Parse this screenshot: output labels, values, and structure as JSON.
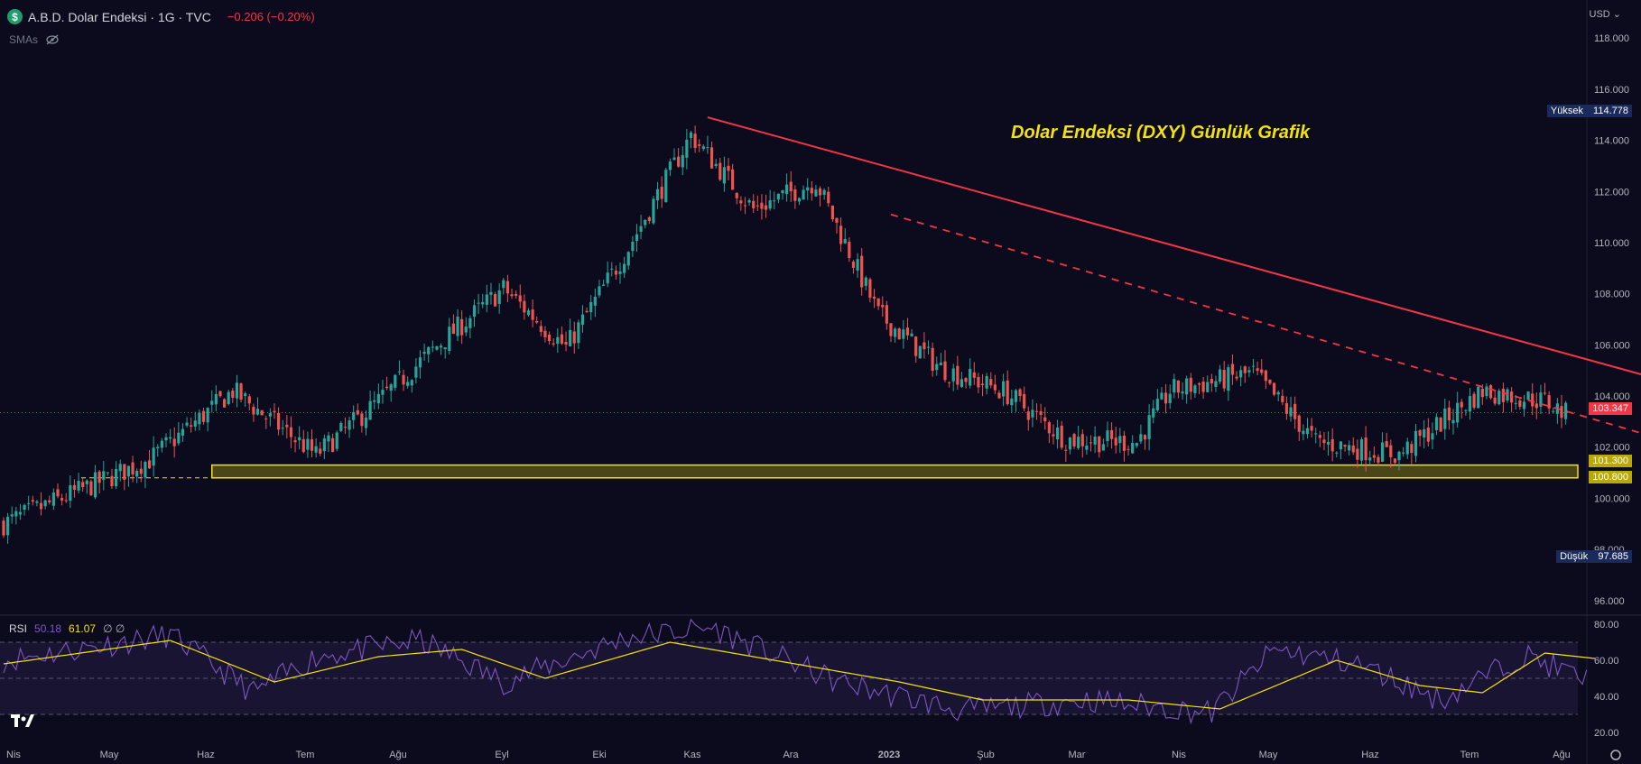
{
  "header": {
    "badge": "$",
    "symbol": "A.B.D. Dolar Endeksi · 1G · TVC",
    "change": "−0.206 (−0.20%)",
    "indicator": "SMAs",
    "hide_icon": "eye-off-icon"
  },
  "currency": "USD ⌄",
  "annotation": "Dolar Endeksi (DXY) Günlük Grafik",
  "price_labels": {
    "high_label": "Yüksek",
    "high_value": "114.778",
    "low_label": "Düşük",
    "low_value": "97.685",
    "last": "103.347",
    "zone_top": "101.300",
    "zone_bottom": "100.800"
  },
  "rsi": {
    "name": "RSI",
    "value1": "50.18",
    "value2": "61.07",
    "extra": "∅ ∅"
  },
  "colors": {
    "background": "#0b0b1d",
    "up": "#26a69a",
    "down": "#ef5350",
    "trendline": "#f23645",
    "zone": "#f5e20a",
    "rsi_line": "#7e57c2",
    "rsi_ma": "#f5e20a"
  },
  "chart_data": [
    {
      "type": "candlestick",
      "title": "A.B.D. Dolar Endeksi · 1G · TVC",
      "ylim": [
        95.5,
        118.5
      ],
      "y_ticks": [
        "96.000",
        "98.000",
        "100.000",
        "102.000",
        "104.000",
        "106.000",
        "108.000",
        "110.000",
        "112.000",
        "114.000",
        "116.000",
        "118.000"
      ],
      "x_ticks": [
        "Nis",
        "May",
        "Haz",
        "Tem",
        "Ağu",
        "Eyl",
        "Eki",
        "Kas",
        "Ara",
        "2023",
        "Şub",
        "Mar",
        "Nis",
        "May",
        "Haz",
        "Tem",
        "Ağu"
      ],
      "anchors": [
        {
          "x": 0,
          "y": 99.0
        },
        {
          "x": 35,
          "y": 101.5
        },
        {
          "x": 55,
          "y": 104.2
        },
        {
          "x": 75,
          "y": 101.7
        },
        {
          "x": 90,
          "y": 103.8
        },
        {
          "x": 105,
          "y": 106.1
        },
        {
          "x": 120,
          "y": 108.2
        },
        {
          "x": 135,
          "y": 105.9
        },
        {
          "x": 150,
          "y": 109.8
        },
        {
          "x": 165,
          "y": 114.2
        },
        {
          "x": 180,
          "y": 111.3
        },
        {
          "x": 195,
          "y": 112.4
        },
        {
          "x": 210,
          "y": 107.2
        },
        {
          "x": 225,
          "y": 105.1
        },
        {
          "x": 240,
          "y": 104.2
        },
        {
          "x": 255,
          "y": 102.3
        },
        {
          "x": 272,
          "y": 102.2
        },
        {
          "x": 280,
          "y": 104.2
        },
        {
          "x": 300,
          "y": 104.9
        },
        {
          "x": 315,
          "y": 102.2
        },
        {
          "x": 335,
          "y": 101.7
        },
        {
          "x": 355,
          "y": 104.2
        },
        {
          "x": 370,
          "y": 103.8
        },
        {
          "x": 375,
          "y": 103.3
        }
      ],
      "resistance_line": {
        "from": {
          "x": 169,
          "y": 114.9
        },
        "to": {
          "x": 470,
          "y": 101.4
        }
      },
      "dashed_trend": {
        "from": {
          "x": 213,
          "y": 111.1
        },
        "to": {
          "x": 430,
          "y": 100.8
        }
      },
      "support_zone": {
        "top": 101.3,
        "bottom": 100.8,
        "from_x": 50
      },
      "current_price": 103.347,
      "high": 114.778,
      "low": 97.685
    },
    {
      "type": "line",
      "title": "RSI",
      "ylim": [
        16,
        82
      ],
      "y_ticks": [
        "20.00",
        "40.00",
        "60.00",
        "80.00"
      ],
      "bands": [
        30,
        50,
        70
      ],
      "series": [
        {
          "name": "50.18",
          "anchors": [
            {
              "x": 0,
              "y": 60
            },
            {
              "x": 40,
              "y": 74
            },
            {
              "x": 60,
              "y": 42
            },
            {
              "x": 75,
              "y": 62
            },
            {
              "x": 100,
              "y": 71
            },
            {
              "x": 120,
              "y": 48
            },
            {
              "x": 150,
              "y": 73
            },
            {
              "x": 170,
              "y": 78
            },
            {
              "x": 200,
              "y": 48
            },
            {
              "x": 230,
              "y": 32
            },
            {
              "x": 260,
              "y": 38
            },
            {
              "x": 290,
              "y": 31
            },
            {
              "x": 305,
              "y": 66
            },
            {
              "x": 325,
              "y": 58
            },
            {
              "x": 345,
              "y": 38
            },
            {
              "x": 365,
              "y": 63
            },
            {
              "x": 380,
              "y": 49
            }
          ]
        },
        {
          "name": "61.07",
          "anchors": [
            {
              "x": 0,
              "y": 58
            },
            {
              "x": 40,
              "y": 71
            },
            {
              "x": 65,
              "y": 48
            },
            {
              "x": 90,
              "y": 62
            },
            {
              "x": 110,
              "y": 66
            },
            {
              "x": 130,
              "y": 50
            },
            {
              "x": 160,
              "y": 70
            },
            {
              "x": 190,
              "y": 58
            },
            {
              "x": 215,
              "y": 48
            },
            {
              "x": 235,
              "y": 38
            },
            {
              "x": 270,
              "y": 38
            },
            {
              "x": 292,
              "y": 33
            },
            {
              "x": 320,
              "y": 60
            },
            {
              "x": 340,
              "y": 46
            },
            {
              "x": 355,
              "y": 42
            },
            {
              "x": 370,
              "y": 64
            },
            {
              "x": 382,
              "y": 61
            }
          ]
        }
      ]
    }
  ]
}
